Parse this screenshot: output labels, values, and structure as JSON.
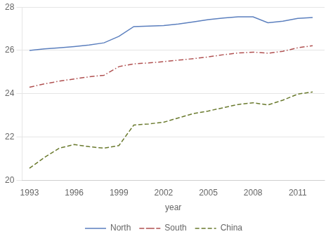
{
  "chart_data": {
    "type": "line",
    "x": [
      1993,
      1994,
      1995,
      1996,
      1997,
      1998,
      1999,
      2000,
      2001,
      2002,
      2003,
      2004,
      2005,
      2006,
      2007,
      2008,
      2009,
      2010,
      2011,
      2012
    ],
    "series": [
      {
        "name": "North",
        "color": "#5b7fbe",
        "line_style": "solid",
        "values": [
          26.0,
          26.07,
          26.12,
          26.18,
          26.25,
          26.35,
          26.65,
          27.1,
          27.12,
          27.15,
          27.22,
          27.32,
          27.42,
          27.5,
          27.55,
          27.55,
          27.28,
          27.35,
          27.48,
          27.52
        ]
      },
      {
        "name": "South",
        "color": "#b05050",
        "line_style": "dashdot",
        "values": [
          24.3,
          24.45,
          24.58,
          24.68,
          24.78,
          24.85,
          25.25,
          25.38,
          25.42,
          25.48,
          25.55,
          25.62,
          25.7,
          25.8,
          25.88,
          25.92,
          25.87,
          25.96,
          26.12,
          26.22
        ]
      },
      {
        "name": "China",
        "color": "#6a7a2e",
        "line_style": "dashed",
        "values": [
          20.55,
          21.05,
          21.48,
          21.65,
          21.55,
          21.48,
          21.6,
          22.55,
          22.6,
          22.68,
          22.88,
          23.08,
          23.2,
          23.35,
          23.5,
          23.58,
          23.48,
          23.7,
          23.98,
          24.08
        ]
      }
    ],
    "xlabel": "year",
    "xlim": [
      1992.5,
      2012.8
    ],
    "xticks": [
      1993,
      1996,
      1999,
      2002,
      2005,
      2008,
      2011
    ],
    "ylim": [
      20,
      28
    ],
    "yticks": [
      20,
      22,
      24,
      26,
      28
    ],
    "grid": "y",
    "legend": "bottom"
  }
}
